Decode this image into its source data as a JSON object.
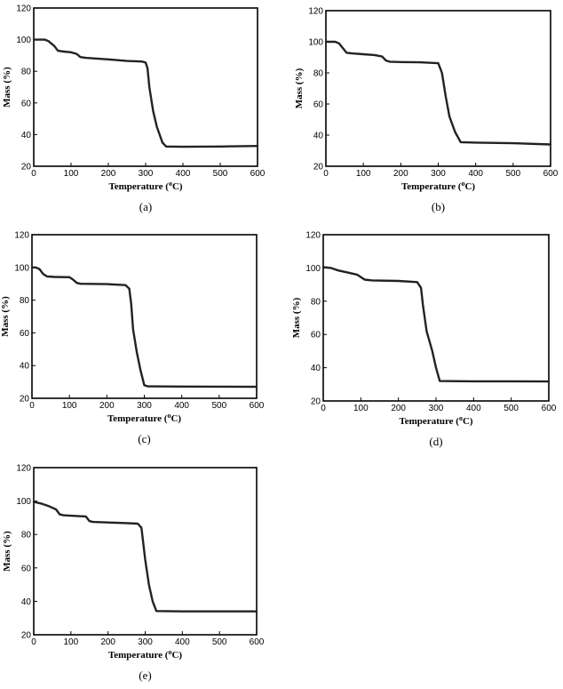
{
  "chart_data": [
    {
      "id": "a",
      "type": "line",
      "panel_label": "(a)",
      "xlabel_main": "Temperature (",
      "xlabel_sup": "o",
      "xlabel_end": "C)",
      "ylabel": "Mass (%)",
      "xlim": [
        0,
        600
      ],
      "ylim": [
        20,
        120
      ],
      "xticks": [
        0,
        100,
        200,
        300,
        400,
        500,
        600
      ],
      "yticks": [
        20,
        40,
        60,
        80,
        100,
        120
      ],
      "series": [
        {
          "x": [
            0,
            30,
            40,
            55,
            65,
            80,
            100,
            115,
            125,
            140,
            200,
            250,
            290,
            300,
            305,
            310,
            320,
            330,
            345,
            355,
            400,
            500,
            600
          ],
          "y": [
            100,
            100,
            99,
            96,
            93,
            92.5,
            92,
            91,
            89,
            88.5,
            87.5,
            86.5,
            86.2,
            85.5,
            82,
            70,
            55,
            45,
            35,
            32.5,
            32.3,
            32.5,
            32.8
          ]
        }
      ]
    },
    {
      "id": "b",
      "type": "line",
      "panel_label": "(b)",
      "xlabel_main": "Temperature (",
      "xlabel_sup": "o",
      "xlabel_end": "C)",
      "ylabel": "Mass (%)",
      "xlim": [
        0,
        600
      ],
      "ylim": [
        20,
        120
      ],
      "xticks": [
        0,
        100,
        200,
        300,
        400,
        500,
        600
      ],
      "yticks": [
        20,
        40,
        60,
        80,
        100,
        120
      ],
      "series": [
        {
          "x": [
            0,
            25,
            35,
            45,
            55,
            70,
            100,
            130,
            150,
            160,
            170,
            200,
            250,
            300,
            310,
            320,
            330,
            345,
            360,
            400,
            500,
            600
          ],
          "y": [
            100,
            100,
            99,
            96,
            93,
            92.5,
            92,
            91.5,
            90.5,
            88,
            87.2,
            87,
            86.8,
            86.2,
            80,
            65,
            52,
            42,
            35.5,
            35.2,
            34.8,
            34
          ]
        }
      ]
    },
    {
      "id": "c",
      "type": "line",
      "panel_label": "(c)",
      "xlabel_main": "Temperature (",
      "xlabel_sup": "o",
      "xlabel_end": "C)",
      "ylabel": "Mass (%)",
      "xlim": [
        0,
        600
      ],
      "ylim": [
        20,
        120
      ],
      "xticks": [
        0,
        100,
        200,
        300,
        400,
        500,
        600
      ],
      "yticks": [
        20,
        40,
        60,
        80,
        100,
        120
      ],
      "series": [
        {
          "x": [
            0,
            10,
            20,
            30,
            40,
            60,
            100,
            110,
            120,
            130,
            200,
            250,
            260,
            265,
            270,
            280,
            290,
            300,
            310,
            400,
            500,
            600
          ],
          "y": [
            100,
            100,
            99,
            96,
            94.5,
            94.2,
            94,
            92.5,
            90.5,
            90,
            89.8,
            89.2,
            87,
            78,
            62,
            48,
            37,
            28,
            27.3,
            27.2,
            27.1,
            27
          ]
        }
      ]
    },
    {
      "id": "d",
      "type": "line",
      "panel_label": "(d)",
      "xlabel_main": "Temperature (",
      "xlabel_sup": "o",
      "xlabel_end": "C)",
      "ylabel": "Mass (%)",
      "xlim": [
        0,
        600
      ],
      "ylim": [
        20,
        120
      ],
      "xticks": [
        0,
        100,
        200,
        300,
        400,
        500,
        600
      ],
      "yticks": [
        20,
        40,
        60,
        80,
        100,
        120
      ],
      "series": [
        {
          "x": [
            0,
            20,
            40,
            60,
            90,
            110,
            130,
            200,
            250,
            260,
            265,
            275,
            290,
            300,
            310,
            400,
            500,
            600
          ],
          "y": [
            100.5,
            100,
            98.5,
            97.5,
            96,
            93,
            92.5,
            92.2,
            91.5,
            88,
            78,
            62,
            50,
            40,
            32,
            31.8,
            31.8,
            31.7
          ]
        }
      ]
    },
    {
      "id": "e",
      "type": "line",
      "panel_label": "(e)",
      "xlabel_main": "Temperature (",
      "xlabel_sup": "o",
      "xlabel_end": "C)",
      "ylabel": "Mass (%)",
      "xlim": [
        0,
        600
      ],
      "ylim": [
        20,
        120
      ],
      "xticks": [
        0,
        100,
        200,
        300,
        400,
        500,
        600
      ],
      "yticks": [
        20,
        40,
        60,
        80,
        100,
        120
      ],
      "series": [
        {
          "x": [
            0,
            20,
            40,
            60,
            70,
            80,
            100,
            140,
            150,
            160,
            200,
            250,
            280,
            290,
            300,
            310,
            320,
            330,
            400,
            500,
            600
          ],
          "y": [
            99.5,
            98.5,
            97,
            95,
            92,
            91.5,
            91.2,
            90.8,
            88,
            87.5,
            87.2,
            86.8,
            86.5,
            84,
            65,
            50,
            40,
            34.2,
            34,
            34,
            34
          ]
        }
      ]
    }
  ]
}
